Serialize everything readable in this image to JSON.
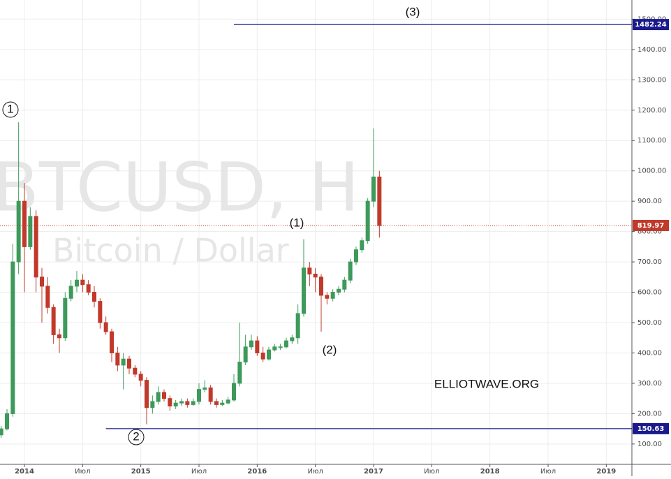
{
  "chart_data": {
    "type": "candlestick",
    "watermark": "BTCUSD, H",
    "watermark_sub": "Bitcoin / Dollar",
    "x": [
      2013.8,
      2013.85,
      2013.9,
      2013.95,
      2014.0,
      2014.05,
      2014.1,
      2014.15,
      2014.2,
      2014.25,
      2014.3,
      2014.35,
      2014.4,
      2014.45,
      2014.5,
      2014.55,
      2014.6,
      2014.65,
      2014.7,
      2014.75,
      2014.8,
      2014.85,
      2014.9,
      2014.95,
      2015.0,
      2015.05,
      2015.1,
      2015.15,
      2015.2,
      2015.25,
      2015.3,
      2015.35,
      2015.4,
      2015.45,
      2015.5,
      2015.55,
      2015.6,
      2015.65,
      2015.7,
      2015.75,
      2015.8,
      2015.85,
      2015.9,
      2015.95,
      2016.0,
      2016.05,
      2016.1,
      2016.15,
      2016.2,
      2016.25,
      2016.3,
      2016.35,
      2016.4,
      2016.45,
      2016.5,
      2016.55,
      2016.6,
      2016.65,
      2016.7,
      2016.75,
      2016.8,
      2016.85,
      2016.9,
      2016.95,
      2017.0,
      2017.05
    ],
    "open": [
      130,
      150,
      200,
      700,
      900,
      750,
      850,
      650,
      620,
      550,
      460,
      450,
      580,
      620,
      640,
      625,
      600,
      570,
      500,
      470,
      400,
      360,
      380,
      350,
      330,
      310,
      220,
      240,
      270,
      250,
      225,
      235,
      240,
      230,
      240,
      280,
      285,
      240,
      230,
      235,
      245,
      300,
      370,
      420,
      440,
      400,
      380,
      410,
      420,
      420,
      440,
      450,
      530,
      680,
      660,
      650,
      590,
      580,
      600,
      610,
      640,
      700,
      740,
      770,
      900,
      980
    ],
    "high": [
      160,
      215,
      760,
      1160,
      960,
      880,
      870,
      680,
      650,
      560,
      480,
      600,
      640,
      670,
      660,
      640,
      620,
      580,
      520,
      480,
      420,
      400,
      390,
      360,
      340,
      320,
      260,
      290,
      280,
      260,
      245,
      250,
      250,
      250,
      300,
      310,
      295,
      250,
      245,
      255,
      330,
      500,
      460,
      460,
      455,
      420,
      420,
      430,
      430,
      450,
      460,
      560,
      775,
      700,
      680,
      660,
      600,
      610,
      620,
      650,
      710,
      750,
      780,
      910,
      1140,
      1000
    ],
    "low": [
      120,
      145,
      190,
      660,
      600,
      740,
      600,
      500,
      530,
      430,
      400,
      440,
      570,
      600,
      600,
      590,
      550,
      480,
      460,
      370,
      340,
      280,
      330,
      320,
      290,
      165,
      200,
      230,
      240,
      210,
      215,
      225,
      220,
      225,
      230,
      270,
      230,
      220,
      225,
      230,
      240,
      290,
      360,
      410,
      390,
      370,
      375,
      405,
      410,
      415,
      430,
      430,
      520,
      620,
      600,
      470,
      560,
      570,
      590,
      600,
      630,
      690,
      730,
      760,
      880,
      780
    ],
    "close": [
      150,
      200,
      700,
      900,
      750,
      850,
      650,
      620,
      550,
      460,
      450,
      580,
      620,
      640,
      625,
      600,
      570,
      500,
      470,
      400,
      360,
      380,
      350,
      330,
      310,
      220,
      240,
      270,
      250,
      225,
      235,
      240,
      230,
      240,
      280,
      285,
      240,
      230,
      235,
      245,
      300,
      370,
      420,
      440,
      400,
      380,
      410,
      420,
      420,
      440,
      450,
      530,
      680,
      660,
      650,
      590,
      580,
      600,
      610,
      640,
      700,
      740,
      770,
      900,
      980,
      819.97
    ],
    "up_color": "#3d9a5a",
    "down_color": "#c0392b",
    "last_price": 819.97,
    "hlines": [
      {
        "value": 1482.24,
        "start": 2015.8,
        "color": "#1a1a8c"
      },
      {
        "value": 150.63,
        "start": 2014.7,
        "color": "#1a1a8c"
      }
    ],
    "annotations": [
      {
        "text": "(3)"
      },
      {
        "text": "1"
      },
      {
        "text": "(1)"
      },
      {
        "text": "(2)"
      },
      {
        "text": "2"
      },
      {
        "text": "ELLIOTWAVE.ORG"
      }
    ],
    "ylim": [
      33,
      1563
    ],
    "yticks": [
      {
        "value": 100,
        "label": "100.00"
      },
      {
        "value": 200,
        "label": "200.00"
      },
      {
        "value": 300,
        "label": "300.00"
      },
      {
        "value": 400,
        "label": "400.00"
      },
      {
        "value": 500,
        "label": "500.00"
      },
      {
        "value": 600,
        "label": "600.00"
      },
      {
        "value": 700,
        "label": "700.00"
      },
      {
        "value": 800,
        "label": "800.00"
      },
      {
        "value": 900,
        "label": "900.00"
      },
      {
        "value": 1000,
        "label": "1000.00"
      },
      {
        "value": 1100,
        "label": "1100.00"
      },
      {
        "value": 1200,
        "label": "1200.00"
      },
      {
        "value": 1300,
        "label": "1300.00"
      },
      {
        "value": 1400,
        "label": "1400.00"
      },
      {
        "value": 1500,
        "label": "1500.00"
      }
    ],
    "xlim": [
      2013.79,
      2019.22
    ],
    "xticks": [
      {
        "value": 2014,
        "label": "2014"
      },
      {
        "value": 2014.5,
        "label": "Июл"
      },
      {
        "value": 2015,
        "label": "2015"
      },
      {
        "value": 2015.5,
        "label": "Июл"
      },
      {
        "value": 2016,
        "label": "2016"
      },
      {
        "value": 2016.5,
        "label": "Июл"
      },
      {
        "value": 2017,
        "label": "2017"
      },
      {
        "value": 2017.5,
        "label": "Июл"
      },
      {
        "value": 2018,
        "label": "2018"
      },
      {
        "value": 2018.5,
        "label": "Июл"
      },
      {
        "value": 2019,
        "label": "2019"
      }
    ],
    "grid": true
  }
}
